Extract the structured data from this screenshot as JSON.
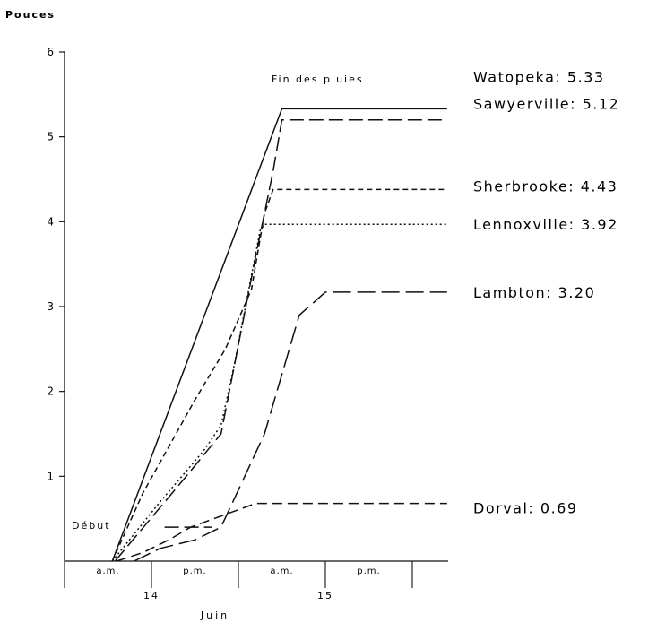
{
  "chart_data": {
    "type": "line",
    "ylabel": "Pouces",
    "xlabel": "Juin",
    "ylim": [
      0,
      6
    ],
    "yticks": [
      "1",
      "2",
      "3",
      "4",
      "5",
      "6"
    ],
    "x_periods": [
      "a.m.",
      "p.m.",
      "a.m.",
      "p.m."
    ],
    "x_days": [
      "14",
      "15"
    ],
    "annotations": {
      "start": "Début",
      "end": "Fin des pluies"
    },
    "grid": false,
    "series": [
      {
        "name": "Watopeka",
        "label": "Watopeka: 5.33",
        "final": 5.33,
        "dash": "",
        "points": [
          [
            0.55,
            0
          ],
          [
            2.5,
            5.33
          ],
          [
            4.4,
            5.33
          ]
        ]
      },
      {
        "name": "Sawyerville",
        "label": "Sawyerville: 5.12",
        "final": 5.12,
        "dash": "16 6",
        "points": [
          [
            0.58,
            0
          ],
          [
            1.4,
            1.0
          ],
          [
            1.8,
            1.5
          ],
          [
            2.2,
            3.6
          ],
          [
            2.4,
            4.6
          ],
          [
            2.5,
            5.2
          ],
          [
            4.4,
            5.2
          ]
        ]
      },
      {
        "name": "Sherbrooke",
        "label": "Sherbrooke: 4.43",
        "final": 4.43,
        "dash": "6 4",
        "points": [
          [
            0.55,
            0
          ],
          [
            0.9,
            0.8
          ],
          [
            1.5,
            1.9
          ],
          [
            1.85,
            2.5
          ],
          [
            2.15,
            3.2
          ],
          [
            2.3,
            4.1
          ],
          [
            2.4,
            4.38
          ],
          [
            4.4,
            4.38
          ]
        ]
      },
      {
        "name": "Lennoxville",
        "label": "Lennoxville: 3.92",
        "final": 3.92,
        "dash": "2 3",
        "points": [
          [
            0.55,
            0
          ],
          [
            1.1,
            0.7
          ],
          [
            1.6,
            1.3
          ],
          [
            1.8,
            1.6
          ],
          [
            1.95,
            2.3
          ],
          [
            2.25,
            3.9
          ],
          [
            2.3,
            3.97
          ],
          [
            4.4,
            3.97
          ]
        ]
      },
      {
        "name": "Lambton",
        "label": "Lambton: 3.20",
        "final": 3.2,
        "dash": "20 7",
        "points": [
          [
            0.8,
            0
          ],
          [
            1.1,
            0.15
          ],
          [
            1.5,
            0.25
          ],
          [
            1.8,
            0.4
          ],
          [
            2.3,
            1.5
          ],
          [
            2.7,
            2.9
          ],
          [
            3.0,
            3.17
          ],
          [
            4.4,
            3.17
          ]
        ]
      },
      {
        "name": "Dorval",
        "label": "Dorval: 0.69",
        "final": 0.69,
        "dash": "11 6",
        "points": [
          [
            0.6,
            0
          ],
          [
            0.9,
            0.1
          ],
          [
            1.2,
            0.25
          ],
          [
            1.45,
            0.4
          ],
          [
            1.85,
            0.55
          ],
          [
            2.2,
            0.68
          ],
          [
            4.4,
            0.68
          ]
        ]
      }
    ],
    "extra_segments": [
      {
        "dash": "16 6",
        "points": [
          [
            1.15,
            0.4
          ],
          [
            1.7,
            0.4
          ]
        ]
      }
    ]
  }
}
